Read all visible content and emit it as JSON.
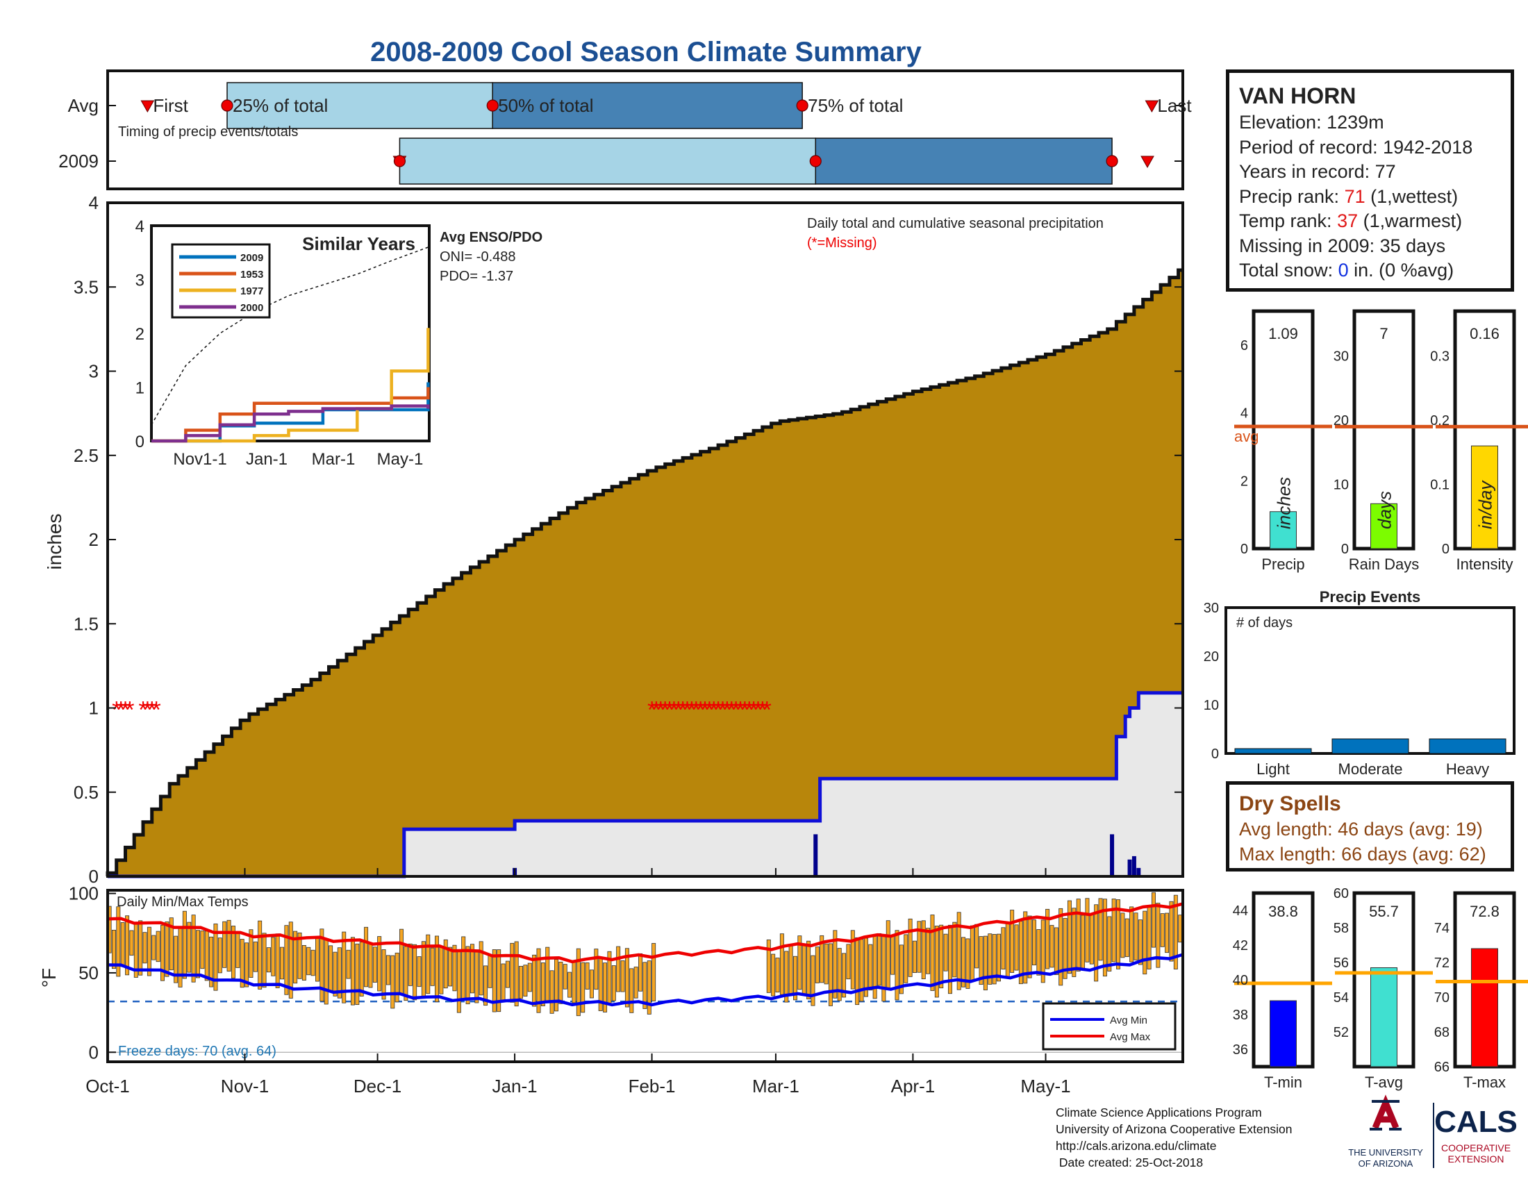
{
  "title": "2008-2009 Cool Season Climate Summary",
  "timing_panel": {
    "row_labels": [
      "Avg",
      "2009"
    ],
    "subtitle": "Timing of precip events/totals",
    "markers": [
      "First",
      "25% of total",
      "50% of total",
      "75% of total",
      "Last"
    ],
    "avg": {
      "first": "2008-10-10",
      "p25": "2008-10-28",
      "p50": "2008-12-27",
      "p75": "2009-03-07",
      "last": "2009-05-25"
    },
    "y2009": {
      "first": "2008-12-06",
      "p25": "2008-12-06",
      "p50": "2009-03-10",
      "p75": "2009-05-16",
      "last": "2009-05-24"
    }
  },
  "station": {
    "name": "VAN HORN",
    "elevation_label": "Elevation: ",
    "elevation": "1239m",
    "period_label": "Period of record: ",
    "period": "1942-2018",
    "years_label": "Years in record: ",
    "years": "77",
    "precip_rank_label": "Precip rank: ",
    "precip_rank": "71",
    "precip_rank_note": " (1,wettest)",
    "temp_rank_label": "Temp rank: ",
    "temp_rank": "37",
    "temp_rank_note": " (1,warmest)",
    "missing_label": "Missing in 2009: ",
    "missing": "35 days",
    "snow_label": "Total snow: ",
    "snow_value": "0",
    "snow_note": " in. (0 %avg)"
  },
  "main_precip": {
    "ylabel": "inches",
    "yticks": [
      "0",
      "0.5",
      "1",
      "1.5",
      "2",
      "2.5",
      "3",
      "3.5",
      "4"
    ],
    "xticks": [
      "Oct-1",
      "Nov-1",
      "Dec-1",
      "Jan-1",
      "Feb-1",
      "Mar-1",
      "Apr-1",
      "May-1"
    ],
    "caption": "Daily total and cumulative seasonal precipitation",
    "caption_missing": "(*=Missing)",
    "enso_title": "Avg ENSO/PDO",
    "oni": "ONI= -0.488",
    "pdo": "PDO= -1.37"
  },
  "similar_years": {
    "title": "Similar Years",
    "legend": [
      "2009",
      "1953",
      "1977",
      "2000"
    ],
    "colors": [
      "#0072bd",
      "#d95319",
      "#edb120",
      "#7e2f8e"
    ],
    "yticks": [
      "0",
      "1",
      "2",
      "3",
      "4"
    ],
    "xticks": [
      "Nov1-1",
      "Jan-1",
      "Mar-1",
      "May-1"
    ]
  },
  "precip_bars": [
    {
      "label": "Precip",
      "value": "1.09",
      "unit": "inches",
      "color": "#40e0d0",
      "avg": 3.6,
      "ymax": 7,
      "yticks": [
        "0",
        "2",
        "4",
        "6"
      ],
      "avg_label": "avg"
    },
    {
      "label": "Rain Days",
      "value": "7",
      "unit": "days",
      "color": "#7cfc00",
      "avg": 19,
      "ymax": 37,
      "yticks": [
        "0",
        "10",
        "20",
        "30"
      ]
    },
    {
      "label": "Intensity",
      "value": "0.16",
      "unit": "in/day",
      "color": "#ffd700",
      "avg": 0.19,
      "ymax": 0.37,
      "yticks": [
        "0",
        "0.1",
        "0.2",
        "0.3"
      ]
    }
  ],
  "precip_events": {
    "title": "Precip Events",
    "ylabel": "# of days",
    "categories": [
      "Light",
      "Moderate",
      "Heavy"
    ],
    "values": [
      1,
      3,
      3
    ],
    "yticks": [
      "0",
      "10",
      "20",
      "30"
    ]
  },
  "dry_spells": {
    "title": "Dry Spells",
    "avg_line": "Avg length: 46 days (avg: 19)",
    "max_line": "Max length: 66 days (avg: 62)"
  },
  "temps": {
    "label": "Daily Min/Max Temps",
    "ylabel": "°F",
    "yticks": [
      "0",
      "50",
      "100"
    ],
    "freeze": "Freeze days: 70 (avg. 64)",
    "legend": [
      "Avg Min",
      "Avg Max"
    ]
  },
  "temp_bars": [
    {
      "label": "T-min",
      "value": "38.8",
      "color": "#0000ff",
      "avg": 39.8,
      "ymin": 35,
      "ymax": 45,
      "yticks": [
        "36",
        "38",
        "40",
        "42",
        "44"
      ]
    },
    {
      "label": "T-avg",
      "value": "55.7",
      "color": "#40e0d0",
      "avg": 55.4,
      "ymin": 50,
      "ymax": 60,
      "yticks": [
        "52",
        "54",
        "56",
        "58",
        "60"
      ]
    },
    {
      "label": "T-max",
      "value": "72.8",
      "color": "#ff0000",
      "avg": 70.9,
      "ymin": 66,
      "ymax": 76,
      "yticks": [
        "66",
        "68",
        "70",
        "72",
        "74"
      ]
    }
  ],
  "credits": {
    "line1": "Climate Science Applications Program",
    "line2": "University of Arizona Cooperative Extension",
    "line3": "http://cals.arizona.edu/climate",
    "line4": " Date created: 25-Oct-2018"
  },
  "logos": {
    "ua_line1": "THE UNIVERSITY",
    "ua_line2": "OF ARIZONA",
    "cals": "CALS",
    "cals_line1": "COOPERATIVE",
    "cals_line2": "EXTENSION"
  },
  "chart_data": [
    {
      "type": "area",
      "title": "Daily total and cumulative seasonal precipitation",
      "ylabel": "inches",
      "ylim": [
        0,
        4
      ],
      "x_range": [
        "2008-10-01",
        "2009-05-31"
      ],
      "series": [
        {
          "name": "",
          "x": [
            "2008-10-01",
            "2008-10-15",
            "2008-11-01",
            "2008-11-15",
            "2008-12-01",
            "2008-12-15",
            "2009-01-01",
            "2009-01-15",
            "2009-02-01",
            "2009-02-15",
            "2009-03-01",
            "2009-03-15",
            "2009-04-01",
            "2009-04-15",
            "2009-05-01",
            "2009-05-15",
            "2009-05-31"
          ],
          "y": [
            0.02,
            0.55,
            0.95,
            1.15,
            1.45,
            1.72,
            2.0,
            2.22,
            2.42,
            2.55,
            2.7,
            2.75,
            2.88,
            2.97,
            3.1,
            3.25,
            3.6
          ]
        },
        {
          "name": "",
          "x": [
            "2008-10-01",
            "2008-12-06",
            "2008-12-07",
            "2008-12-31",
            "2009-01-01",
            "2009-03-10",
            "2009-03-11",
            "2009-05-16",
            "2009-05-17",
            "2009-05-19",
            "2009-05-20",
            "2009-05-22",
            "2009-05-31"
          ],
          "y": [
            0,
            0,
            0.28,
            0.28,
            0.33,
            0.33,
            0.58,
            0.58,
            0.83,
            0.95,
            1.0,
            1.09,
            1.09
          ]
        }
      ],
      "daily_bars": {
        "x": [
          "2009-01-01",
          "2009-03-10",
          "2009-05-16",
          "2009-05-20",
          "2009-05-21",
          "2009-05-22"
        ],
        "y": [
          0.05,
          0.25,
          0.25,
          0.1,
          0.12,
          0.05
        ]
      },
      "missing_days": [
        "2008-10-03",
        "2008-10-04",
        "2008-10-05",
        "2008-10-06",
        "2008-10-09",
        "2008-10-10",
        "2008-10-11",
        "2008-10-12",
        "2009-02-01",
        "2009-02-02",
        "2009-02-03",
        "2009-02-04",
        "2009-02-05",
        "2009-02-06",
        "2009-02-07",
        "2009-02-08",
        "2009-02-09",
        "2009-02-10",
        "2009-02-11",
        "2009-02-12",
        "2009-02-13",
        "2009-02-14",
        "2009-02-15",
        "2009-02-16",
        "2009-02-17",
        "2009-02-18",
        "2009-02-19",
        "2009-02-20",
        "2009-02-21",
        "2009-02-22",
        "2009-02-23",
        "2009-02-24",
        "2009-02-25",
        "2009-02-26",
        "2009-02-27"
      ]
    },
    {
      "type": "line",
      "title": "Similar Years",
      "ylim": [
        0,
        4
      ],
      "x": [
        0,
        30,
        60,
        90,
        120,
        150,
        180,
        210,
        242
      ],
      "series": [
        {
          "name": "2009",
          "values": [
            0,
            0,
            0.28,
            0.33,
            0.33,
            0.58,
            0.58,
            0.58,
            1.09
          ]
        },
        {
          "name": "1953",
          "values": [
            0,
            0.2,
            0.5,
            0.7,
            0.7,
            0.7,
            0.7,
            0.8,
            1.0
          ]
        },
        {
          "name": "1977",
          "values": [
            0,
            0,
            0,
            0.1,
            0.2,
            0.2,
            0.6,
            1.3,
            2.1
          ]
        },
        {
          "name": "2000",
          "values": [
            0,
            0.1,
            0.3,
            0.5,
            0.55,
            0.6,
            0.6,
            0.65,
            0.6
          ]
        },
        {
          "name": "",
          "values": [
            0.3,
            1.4,
            2.0,
            2.4,
            2.7,
            2.9,
            3.1,
            3.35,
            3.6
          ]
        }
      ]
    },
    {
      "type": "bar",
      "title": "Precip Events",
      "categories": [
        "Light",
        "Moderate",
        "Heavy"
      ],
      "values": [
        1,
        3,
        3
      ],
      "ylim": [
        0,
        30
      ]
    },
    {
      "type": "line",
      "title": "Daily Min/Max Temps",
      "ylabel": "°F",
      "ylim": [
        0,
        100
      ],
      "x": [
        "2008-10-01",
        "2008-10-15",
        "2008-11-01",
        "2008-11-15",
        "2008-12-01",
        "2008-12-15",
        "2009-01-01",
        "2009-01-15",
        "2009-02-01",
        "2009-02-15",
        "2009-03-01",
        "2009-03-15",
        "2009-04-01",
        "2009-04-15",
        "2009-05-01",
        "2009-05-15",
        "2009-05-31"
      ],
      "series": [
        {
          "name": "Avg Min",
          "values": [
            55,
            50,
            44,
            40,
            37,
            34,
            32,
            31,
            31,
            33,
            35,
            38,
            42,
            46,
            50,
            54,
            61
          ]
        },
        {
          "name": "Avg Max",
          "values": [
            84,
            80,
            74,
            72,
            69,
            66,
            60,
            58,
            61,
            63,
            66,
            70,
            76,
            80,
            85,
            89,
            93
          ]
        }
      ],
      "freeze_threshold": 32,
      "daily_range_note_missing": [
        "2009-02-01",
        "2009-02-27"
      ]
    }
  ]
}
